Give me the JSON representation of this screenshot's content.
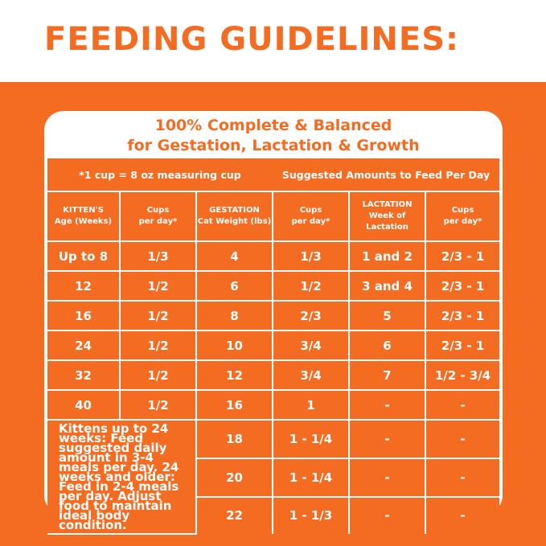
{
  "header": {
    "title": "FEEDING GUIDELINES:"
  },
  "panel": {
    "title_lines": [
      "100% Complete & Balanced",
      "for Gestation, Lactation & Growth"
    ]
  },
  "table": {
    "cup_note": "*1 cup = 8 oz measuring cup",
    "amounts_note": "Suggested Amounts to Feed Per Day",
    "columns": [
      [
        "KITTEN'S",
        "Age (Weeks)"
      ],
      [
        "Cups",
        "per day*"
      ],
      [
        "GESTATION",
        "Cat Weight (lbs)"
      ],
      [
        "Cups",
        "per day*"
      ],
      [
        "LACTATION",
        "Week of",
        "Lactation"
      ],
      [
        "Cups",
        "per day*"
      ]
    ],
    "rows": [
      [
        "Up to 8",
        "1/3",
        "4",
        "1/3",
        "1 and 2",
        "2/3 - 1"
      ],
      [
        "12",
        "1/2",
        "6",
        "1/2",
        "3 and 4",
        "2/3 - 1"
      ],
      [
        "16",
        "1/2",
        "8",
        "2/3",
        "5",
        "2/3 - 1"
      ],
      [
        "24",
        "1/2",
        "10",
        "3/4",
        "6",
        "2/3 - 1"
      ],
      [
        "32",
        "1/2",
        "12",
        "3/4",
        "7",
        "1/2 - 3/4"
      ],
      [
        "40",
        "1/2",
        "16",
        "1",
        "-",
        "-"
      ],
      [
        "18",
        "1 - 1/4",
        "-",
        "-"
      ],
      [
        "20",
        "1 - 1/4",
        "-",
        "-"
      ],
      [
        "22",
        "1 - 1/3",
        "-",
        "-"
      ]
    ],
    "kitten_note": "Kittens up to 24 weeks: Feed suggested daily amount in 3-4 meals per day. 24 weeks and older: Feed in 2-4 meals per day. Adjust food to maintain ideal body condition."
  }
}
